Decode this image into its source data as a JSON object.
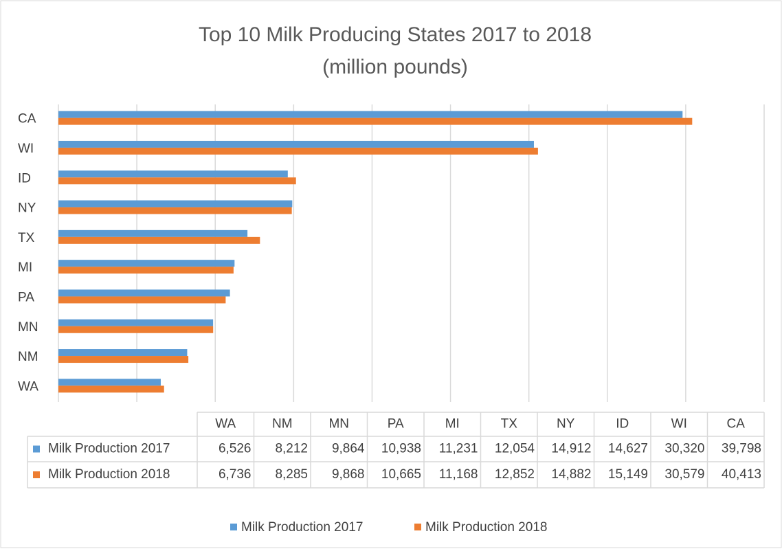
{
  "chart_data": {
    "type": "bar",
    "orientation": "horizontal",
    "title": "Top 10 Milk Producing States 2017 to 2018",
    "subtitle": "(million pounds)",
    "categories": [
      "WA",
      "NM",
      "MN",
      "PA",
      "MI",
      "TX",
      "NY",
      "ID",
      "WI",
      "CA"
    ],
    "series": [
      {
        "name": "Milk Production 2017",
        "color": "#5b9bd5",
        "values": [
          6526,
          8212,
          9864,
          10938,
          11231,
          12054,
          14912,
          14627,
          30320,
          39798
        ],
        "value_labels": [
          "6,526",
          "8,212",
          "9,864",
          "10,938",
          "11,231",
          "12,054",
          "14,912",
          "14,627",
          "30,320",
          "39,798"
        ]
      },
      {
        "name": "Milk Production 2018",
        "color": "#ed7d31",
        "values": [
          6736,
          8285,
          9868,
          10665,
          11168,
          12852,
          14882,
          15149,
          30579,
          40413
        ],
        "value_labels": [
          "6,736",
          "8,285",
          "9,868",
          "10,665",
          "11,168",
          "12,852",
          "14,882",
          "15,149",
          "30,579",
          "40,413"
        ]
      }
    ],
    "xlim": [
      0,
      45000
    ],
    "xticks": [
      0,
      5000,
      10000,
      15000,
      20000,
      25000,
      30000,
      35000,
      40000,
      45000
    ],
    "grid": true,
    "legend": "bottom",
    "data_table": true
  }
}
